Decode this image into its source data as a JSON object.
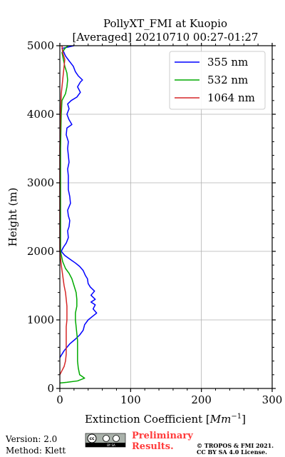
{
  "chart_data": {
    "type": "line",
    "title": [
      "PollyXT_FMI at Kuopio",
      "[Averaged] 20210710 00:27-01:27"
    ],
    "xlabel": "Extinction Coefficient [$Mm^{-1}$]",
    "xlabel_main": "Extinction Coefficient [",
    "xlabel_unit": "Mm",
    "xlabel_exp": "−1",
    "xlabel_close": "]",
    "ylabel": "Height (m)",
    "xlim": [
      0,
      300
    ],
    "ylim": [
      0,
      5000
    ],
    "xticks": [
      0,
      100,
      200,
      300
    ],
    "yticks": [
      0,
      1000,
      2000,
      3000,
      4000,
      5000
    ],
    "grid": true,
    "legend_position": "top-right",
    "series": [
      {
        "name": "355 nm",
        "color": "#0000ff",
        "points": [
          [
            0,
            450
          ],
          [
            6,
            550
          ],
          [
            14,
            650
          ],
          [
            22,
            720
          ],
          [
            28,
            780
          ],
          [
            33,
            850
          ],
          [
            35,
            930
          ],
          [
            40,
            1000
          ],
          [
            46,
            1050
          ],
          [
            52,
            1100
          ],
          [
            47,
            1160
          ],
          [
            50,
            1220
          ],
          [
            44,
            1260
          ],
          [
            50,
            1300
          ],
          [
            44,
            1360
          ],
          [
            49,
            1420
          ],
          [
            43,
            1480
          ],
          [
            40,
            1530
          ],
          [
            39,
            1600
          ],
          [
            36,
            1650
          ],
          [
            33,
            1720
          ],
          [
            28,
            1780
          ],
          [
            22,
            1830
          ],
          [
            15,
            1880
          ],
          [
            7,
            1940
          ],
          [
            2,
            2000
          ],
          [
            5,
            2060
          ],
          [
            9,
            2120
          ],
          [
            12,
            2200
          ],
          [
            11,
            2300
          ],
          [
            13,
            2360
          ],
          [
            14,
            2450
          ],
          [
            12,
            2520
          ],
          [
            11,
            2600
          ],
          [
            15,
            2700
          ],
          [
            14,
            2800
          ],
          [
            12,
            2900
          ],
          [
            12,
            3000
          ],
          [
            12,
            3100
          ],
          [
            11,
            3200
          ],
          [
            13,
            3300
          ],
          [
            12,
            3400
          ],
          [
            11,
            3500
          ],
          [
            12,
            3600
          ],
          [
            9,
            3700
          ],
          [
            10,
            3800
          ],
          [
            17,
            3850
          ],
          [
            13,
            3920
          ],
          [
            10,
            4000
          ],
          [
            13,
            4080
          ],
          [
            11,
            4150
          ],
          [
            16,
            4200
          ],
          [
            24,
            4250
          ],
          [
            29,
            4320
          ],
          [
            25,
            4400
          ],
          [
            29,
            4470
          ],
          [
            32,
            4500
          ],
          [
            26,
            4560
          ],
          [
            22,
            4620
          ],
          [
            19,
            4700
          ],
          [
            13,
            4780
          ],
          [
            8,
            4850
          ],
          [
            5,
            4920
          ],
          [
            3,
            4960
          ],
          [
            20,
            5000
          ]
        ]
      },
      {
        "name": "532 nm",
        "color": "#00aa00",
        "points": [
          [
            0,
            80
          ],
          [
            10,
            90
          ],
          [
            25,
            110
          ],
          [
            35,
            150
          ],
          [
            28,
            200
          ],
          [
            26,
            300
          ],
          [
            25,
            400
          ],
          [
            25,
            500
          ],
          [
            25,
            600
          ],
          [
            25,
            700
          ],
          [
            24,
            800
          ],
          [
            23,
            900
          ],
          [
            22,
            1000
          ],
          [
            22,
            1100
          ],
          [
            24,
            1200
          ],
          [
            24,
            1300
          ],
          [
            23,
            1400
          ],
          [
            20,
            1500
          ],
          [
            17,
            1600
          ],
          [
            13,
            1680
          ],
          [
            8,
            1750
          ],
          [
            4,
            1850
          ],
          [
            1,
            2000
          ],
          [
            1,
            2500
          ],
          [
            1,
            3000
          ],
          [
            1,
            3500
          ],
          [
            2,
            4000
          ],
          [
            3,
            4200
          ],
          [
            8,
            4300
          ],
          [
            10,
            4400
          ],
          [
            11,
            4500
          ],
          [
            10,
            4600
          ],
          [
            7,
            4700
          ],
          [
            5,
            4800
          ],
          [
            3,
            4900
          ],
          [
            8,
            4970
          ],
          [
            12,
            5000
          ]
        ]
      },
      {
        "name": "1064 nm",
        "color": "#d62728",
        "points": [
          [
            0,
            200
          ],
          [
            3,
            260
          ],
          [
            6,
            320
          ],
          [
            8,
            400
          ],
          [
            9,
            500
          ],
          [
            9,
            600
          ],
          [
            9,
            700
          ],
          [
            9,
            800
          ],
          [
            9,
            900
          ],
          [
            10,
            1000
          ],
          [
            10,
            1100
          ],
          [
            10,
            1200
          ],
          [
            9,
            1300
          ],
          [
            8,
            1400
          ],
          [
            6,
            1500
          ],
          [
            4,
            1650
          ],
          [
            2,
            1800
          ],
          [
            1,
            1900
          ],
          [
            0,
            2000
          ],
          [
            0,
            2500
          ],
          [
            0,
            3000
          ],
          [
            0,
            3500
          ],
          [
            1,
            4000
          ],
          [
            2,
            4300
          ],
          [
            4,
            4500
          ],
          [
            6,
            4700
          ],
          [
            7,
            4800
          ],
          [
            4,
            4900
          ],
          [
            3,
            5000
          ]
        ]
      }
    ]
  },
  "footer": {
    "version": "Version: 2.0",
    "method": "Method: Klett",
    "preliminary_line1": "Preliminary",
    "preliminary_line2": "Results.",
    "copyright_line1": "© TROPOS & FMI 2021.",
    "copyright_line2": "CC BY SA 4.0 License.",
    "license_badge_text": "BY SA",
    "license_badge_cc": "cc"
  }
}
